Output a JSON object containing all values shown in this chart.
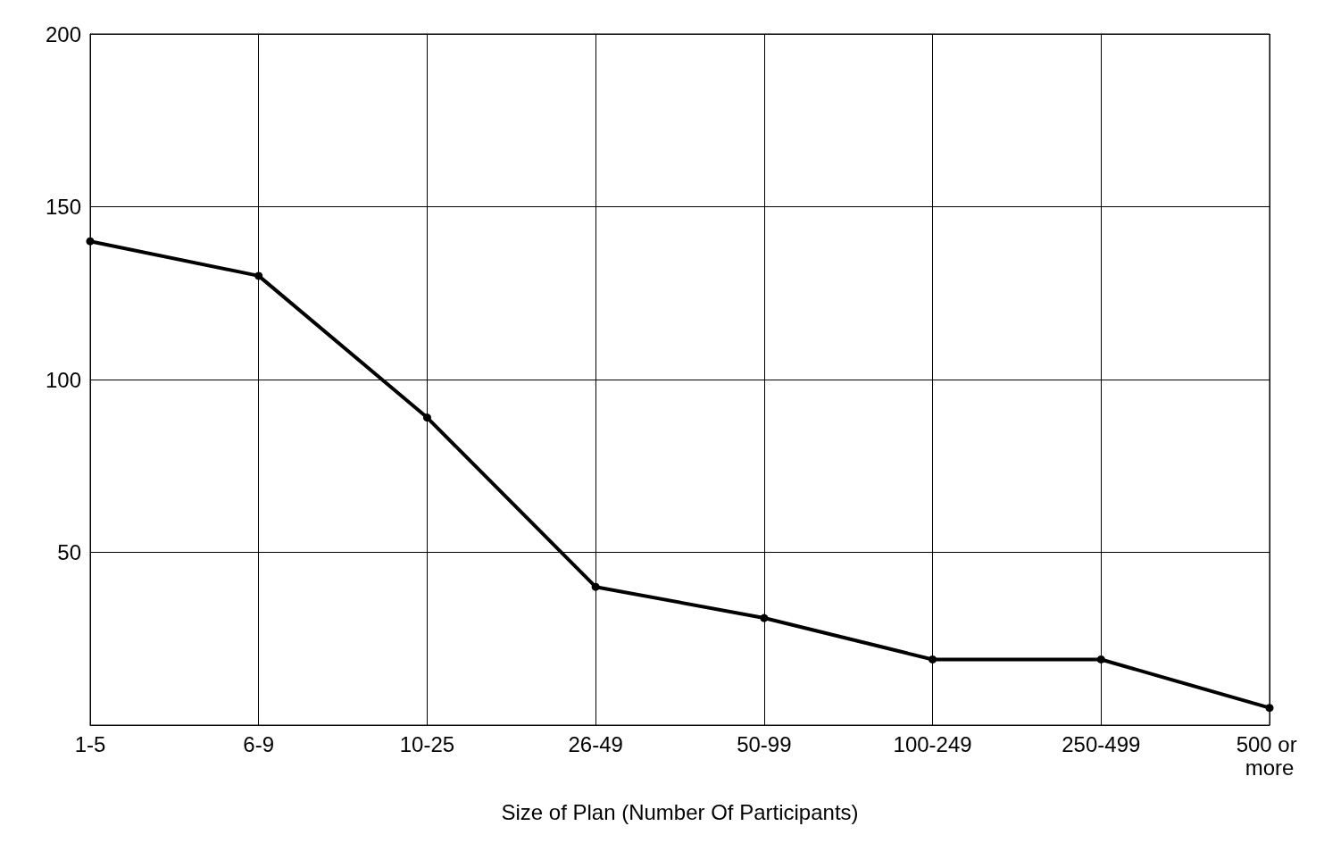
{
  "chart_data": {
    "type": "line",
    "xlabel": "Size of Plan (Number Of Participants)",
    "categories": [
      "1-5",
      "6-9",
      "10-25",
      "26-49",
      "50-99",
      "100-249",
      "250-499",
      "500 or more"
    ],
    "values": [
      140,
      130,
      89,
      40,
      31,
      19,
      19,
      5
    ],
    "color": "#000000",
    "marker": "circle",
    "line_style": "solid",
    "ylim": [
      0,
      200
    ],
    "yticks": [
      {
        "value": 0,
        "label": null
      },
      50,
      100,
      150,
      200
    ],
    "grid": true
  }
}
